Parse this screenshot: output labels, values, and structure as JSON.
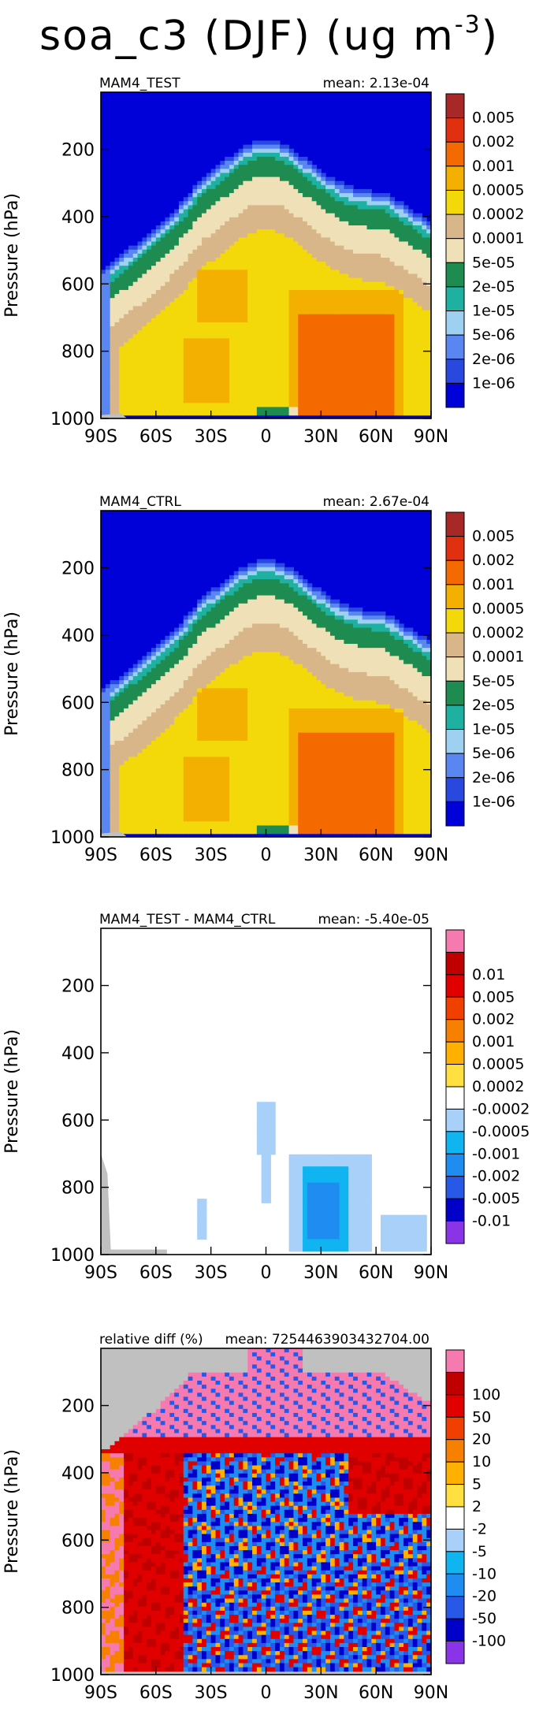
{
  "title": {
    "main": "soa_c3 (DJF) (ug m",
    "exponent": "-3",
    "close": ")"
  },
  "colors": {
    "conc": [
      "#0000d8",
      "#2848e0",
      "#5a86f2",
      "#9ed0f2",
      "#1eb0a0",
      "#1e8c50",
      "#f0e0b8",
      "#d8b68a",
      "#f4d90a",
      "#f4b000",
      "#f46a00",
      "#e03010",
      "#a82828"
    ],
    "diff": [
      "#8a34e8",
      "#0000c8",
      "#2858e8",
      "#1e8cf0",
      "#10b4f0",
      "#a8d0f8",
      "#ffffff",
      "#ffe040",
      "#ffb000",
      "#f88000",
      "#f04000",
      "#e00000",
      "#c00000",
      "#f67ab0"
    ],
    "missing": "#c0c0c0",
    "frame": "#000000"
  },
  "chart_data": [
    {
      "type": "heatmap",
      "name": "MAM4_TEST",
      "label_left": "MAM4_TEST",
      "label_right": "mean: 2.13e-04",
      "xlabel": "",
      "ylabel": "Pressure (hPa)",
      "xticks": [
        "90S",
        "60S",
        "30S",
        "0",
        "30N",
        "60N",
        "90N"
      ],
      "yticks": [
        "200",
        "400",
        "600",
        "800",
        "1000"
      ],
      "ylim": [
        1000,
        30
      ],
      "colorbar_labels": [
        "1e-06",
        "2e-06",
        "5e-06",
        "1e-05",
        "2e-05",
        "5e-05",
        "0.0001",
        "0.0002",
        "0.0005",
        "0.001",
        "0.002",
        "0.005"
      ]
    },
    {
      "type": "heatmap",
      "name": "MAM4_CTRL",
      "label_left": "MAM4_CTRL",
      "label_right": "mean: 2.67e-04",
      "xlabel": "",
      "ylabel": "Pressure (hPa)",
      "xticks": [
        "90S",
        "60S",
        "30S",
        "0",
        "30N",
        "60N",
        "90N"
      ],
      "yticks": [
        "200",
        "400",
        "600",
        "800",
        "1000"
      ],
      "ylim": [
        1000,
        30
      ],
      "colorbar_labels": [
        "1e-06",
        "2e-06",
        "5e-06",
        "1e-05",
        "2e-05",
        "5e-05",
        "0.0001",
        "0.0002",
        "0.0005",
        "0.001",
        "0.002",
        "0.005"
      ]
    },
    {
      "type": "heatmap",
      "name": "MAM4_TEST - MAM4_CTRL",
      "label_left": "MAM4_TEST - MAM4_CTRL",
      "label_right": "mean: -5.40e-05",
      "xlabel": "",
      "ylabel": "Pressure (hPa)",
      "xticks": [
        "90S",
        "60S",
        "30S",
        "0",
        "30N",
        "60N",
        "90N"
      ],
      "yticks": [
        "200",
        "400",
        "600",
        "800",
        "1000"
      ],
      "ylim": [
        1000,
        30
      ],
      "colorbar_labels": [
        "-0.01",
        "-0.005",
        "-0.002",
        "-0.001",
        "-0.0005",
        "-0.0002",
        "0.0002",
        "0.0005",
        "0.001",
        "0.002",
        "0.005",
        "0.01"
      ]
    },
    {
      "type": "heatmap",
      "name": "relative diff (%)",
      "label_left": "relative diff (%)",
      "label_right": "mean: 7254463903432704.00",
      "xlabel": "",
      "ylabel": "Pressure (hPa)",
      "xticks": [
        "90S",
        "60S",
        "30S",
        "0",
        "30N",
        "60N",
        "90N"
      ],
      "yticks": [
        "200",
        "400",
        "600",
        "800",
        "1000"
      ],
      "ylim": [
        1000,
        30
      ],
      "colorbar_labels": [
        "-100",
        "-50",
        "-20",
        "-10",
        "-5",
        "-2",
        "2",
        "5",
        "10",
        "20",
        "50",
        "100"
      ]
    }
  ]
}
